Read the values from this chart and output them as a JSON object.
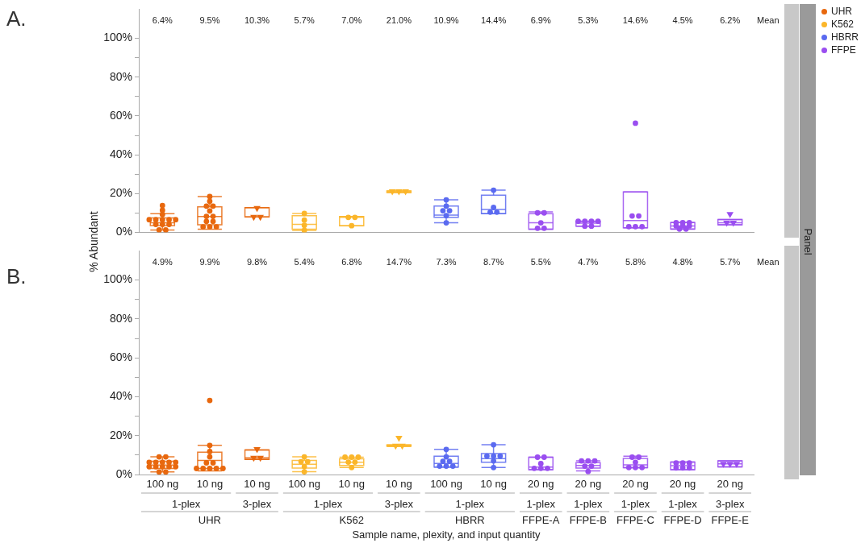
{
  "chart_data": [
    {
      "type": "box",
      "title": "A.",
      "ylabel": "% Abundant",
      "tick_labels": "y",
      "legend": "top right",
      "marker": "circle",
      "categories": [
        null,
        null,
        null,
        null,
        null,
        null,
        null,
        null,
        null,
        null,
        null,
        null,
        null
      ],
      "ylim": [
        0,
        115
      ],
      "yticks": [
        {
          "value": 0,
          "label": "0%"
        },
        {
          "value": 10,
          "label": null
        },
        {
          "value": 20,
          "label": "20%"
        },
        {
          "value": 30,
          "label": null
        },
        {
          "value": 40,
          "label": "40%"
        },
        {
          "value": 50,
          "label": null
        },
        {
          "value": 60,
          "label": "60%"
        },
        {
          "value": 70,
          "label": null
        },
        {
          "value": 80,
          "label": "80%"
        },
        {
          "value": 90,
          "label": null
        },
        {
          "value": 100,
          "label": "100%"
        }
      ],
      "annotations": [
        "Mean",
        "Panel"
      ],
      "series": [
        {
          "type": "box",
          "name": "UHR",
          "color": "#e8680e",
          "boxes": [
            {
              "low": 1.3,
              "q1": 3.6,
              "median": 5.0,
              "q3": 7.5,
              "high": 9.7
            },
            {
              "low": 1.7,
              "q1": 4.0,
              "median": 8.2,
              "q3": 13.2,
              "high": 18.5
            },
            {
              "low": 8.0,
              "q1": 8.0,
              "median": 8.0,
              "q3": 12.8,
              "high": 12.8
            },
            null,
            null,
            null,
            null,
            null,
            null,
            null,
            null,
            null,
            null
          ],
          "value_labels": [
            "6.4%",
            "9.5%",
            "10.3%",
            null,
            null,
            null,
            null,
            null,
            null,
            null,
            null,
            null,
            null
          ]
        },
        {
          "type": "box",
          "name": "K562",
          "color": "#fbb62a",
          "boxes": [
            null,
            null,
            null,
            {
              "low": 1.1,
              "q1": 1.7,
              "median": 4.2,
              "q3": 8.6,
              "high": 9.8
            },
            {
              "low": 3.5,
              "q1": 3.5,
              "median": 7.8,
              "q3": 8.2,
              "high": 8.2
            },
            {
              "low": 20.6,
              "q1": 20.6,
              "median": 21.2,
              "q3": 21.4,
              "high": 21.4
            },
            null,
            null,
            null,
            null,
            null,
            null,
            null
          ],
          "value_labels": [
            null,
            null,
            null,
            "5.7%",
            "7.0%",
            "21.0%",
            null,
            null,
            null,
            null,
            null,
            null,
            null
          ]
        },
        {
          "type": "box",
          "name": "HBRR",
          "color": "#5a6af0",
          "boxes": [
            null,
            null,
            null,
            null,
            null,
            null,
            {
              "low": 5.0,
              "q1": 7.8,
              "median": 9.0,
              "q3": 13.6,
              "high": 16.8
            },
            {
              "low": 9.7,
              "q1": 9.7,
              "median": 11.9,
              "q3": 19.2,
              "high": 21.8
            },
            null,
            null,
            null,
            null,
            null
          ],
          "value_labels": [
            null,
            null,
            null,
            null,
            null,
            null,
            "10.9%",
            "14.4%",
            null,
            null,
            null,
            null,
            null
          ]
        },
        {
          "type": "box",
          "name": "FFPE",
          "color": "#9a4ef0",
          "boxes": [
            null,
            null,
            null,
            null,
            null,
            null,
            null,
            null,
            {
              "low": 1.7,
              "q1": 1.7,
              "median": 5.0,
              "q3": 9.7,
              "high": 10.6
            },
            {
              "low": 3.3,
              "q1": 3.3,
              "median": 4.8,
              "q3": 5.6,
              "high": 5.8
            },
            {
              "low": 2.4,
              "q1": 2.4,
              "median": 6.2,
              "q3": 20.9,
              "high": 20.9
            },
            {
              "low": 1.7,
              "q1": 1.8,
              "median": 3.4,
              "q3": 5.1,
              "high": 5.1
            },
            {
              "low": 4.0,
              "q1": 4.0,
              "median": 5.0,
              "q3": 6.7,
              "high": 6.7
            }
          ],
          "value_labels": [
            null,
            null,
            null,
            null,
            null,
            null,
            null,
            null,
            "6.9%",
            "5.3%",
            "14.6%",
            "4.5%",
            "6.2%"
          ]
        },
        {
          "type": "scatter",
          "values": [
            13.9,
            18.5,
            null,
            9.8,
            7.8,
            null,
            16.8,
            21.8,
            10.1,
            5.8,
            56.3,
            5.1,
            null
          ],
          "colors": [
            "#e8680e",
            "#e8680e",
            null,
            "#fbb62a",
            "#fbb62a",
            null,
            "#5a6af0",
            "#5a6af0",
            "#9a4ef0",
            "#9a4ef0",
            "#9a4ef0",
            "#9a4ef0",
            null
          ]
        },
        {
          "type": "scatter",
          "values": [
            11.5,
            16.1,
            null,
            6.4,
            7.8,
            null,
            13.6,
            12.9,
            10.1,
            5.8,
            8.5,
            5.1,
            null
          ],
          "colors": [
            "#e8680e",
            "#e8680e",
            null,
            "#fbb62a",
            "#fbb62a",
            null,
            "#5a6af0",
            "#5a6af0",
            "#9a4ef0",
            "#9a4ef0",
            "#9a4ef0",
            "#9a4ef0",
            null
          ]
        },
        {
          "type": "scatter",
          "values": [
            9.3,
            13.6,
            null,
            3.7,
            3.5,
            null,
            11.2,
            10.5,
            5.0,
            5.8,
            8.5,
            5.1,
            null
          ],
          "colors": [
            "#e8680e",
            "#e8680e",
            null,
            "#fbb62a",
            "#fbb62a",
            null,
            "#5a6af0",
            "#5a6af0",
            "#9a4ef0",
            "#9a4ef0",
            "#9a4ef0",
            "#9a4ef0",
            null
          ]
        },
        {
          "type": "scatter",
          "values": [
            6.6,
            13.6,
            null,
            1.1,
            null,
            null,
            11.2,
            10.5,
            2.2,
            5.8,
            3.0,
            3.4,
            null
          ],
          "colors": [
            "#e8680e",
            "#e8680e",
            null,
            "#fbb62a",
            null,
            null,
            "#5a6af0",
            "#5a6af0",
            "#9a4ef0",
            "#9a4ef0",
            "#9a4ef0",
            "#9a4ef0",
            null
          ]
        },
        {
          "type": "scatter",
          "values": [
            6.6,
            11.1,
            null,
            null,
            null,
            null,
            8.7,
            null,
            2.2,
            3.3,
            3.0,
            3.4,
            null
          ],
          "colors": [
            "#e8680e",
            "#e8680e",
            null,
            null,
            null,
            null,
            "#5a6af0",
            null,
            "#9a4ef0",
            "#9a4ef0",
            "#9a4ef0",
            "#9a4ef0",
            null
          ]
        },
        {
          "type": "scatter",
          "values": [
            6.6,
            8.3,
            null,
            null,
            null,
            null,
            5.0,
            null,
            null,
            3.3,
            3.0,
            3.4,
            null
          ],
          "colors": [
            "#e8680e",
            "#e8680e",
            null,
            null,
            null,
            null,
            "#5a6af0",
            null,
            null,
            "#9a4ef0",
            "#9a4ef0",
            "#9a4ef0",
            null
          ]
        },
        {
          "type": "scatter",
          "values": [
            6.6,
            8.3,
            null,
            null,
            null,
            null,
            null,
            null,
            null,
            null,
            null,
            1.8,
            null
          ],
          "colors": [
            "#e8680e",
            "#e8680e",
            null,
            null,
            null,
            null,
            null,
            null,
            null,
            null,
            null,
            "#9a4ef0",
            null
          ]
        },
        {
          "type": "scatter",
          "values": [
            6.6,
            5.7,
            null,
            null,
            null,
            null,
            null,
            null,
            null,
            null,
            null,
            1.8,
            null
          ],
          "colors": [
            "#e8680e",
            "#e8680e",
            null,
            null,
            null,
            null,
            null,
            null,
            null,
            null,
            null,
            "#9a4ef0",
            null
          ]
        },
        {
          "type": "scatter",
          "values": [
            4.2,
            5.7,
            null,
            null,
            null,
            null,
            null,
            null,
            null,
            null,
            null,
            null,
            null
          ],
          "colors": [
            "#e8680e",
            "#e8680e",
            null,
            null,
            null,
            null,
            null,
            null,
            null,
            null,
            null,
            null,
            null
          ]
        },
        {
          "type": "scatter",
          "values": [
            4.2,
            2.9,
            null,
            null,
            null,
            null,
            null,
            null,
            null,
            null,
            null,
            null,
            null
          ],
          "colors": [
            "#e8680e",
            "#e8680e",
            null,
            null,
            null,
            null,
            null,
            null,
            null,
            null,
            null,
            null,
            null
          ]
        },
        {
          "type": "scatter",
          "values": [
            4.2,
            2.9,
            null,
            null,
            null,
            null,
            null,
            null,
            null,
            null,
            null,
            null,
            null
          ],
          "colors": [
            "#e8680e",
            "#e8680e",
            null,
            null,
            null,
            null,
            null,
            null,
            null,
            null,
            null,
            null,
            null
          ]
        },
        {
          "type": "scatter",
          "values": [
            1.3,
            2.9,
            null,
            null,
            null,
            null,
            null,
            null,
            null,
            null,
            null,
            null,
            null
          ],
          "colors": [
            "#e8680e",
            "#e8680e",
            null,
            null,
            null,
            null,
            null,
            null,
            null,
            null,
            null,
            null,
            null
          ]
        },
        {
          "type": "scatter",
          "values": [
            1.3,
            null,
            null,
            null,
            null,
            null,
            null,
            null,
            null,
            null,
            null,
            null,
            null
          ],
          "colors": [
            "#e8680e",
            null,
            null,
            null,
            null,
            null,
            null,
            null,
            null,
            null,
            null,
            null,
            null
          ]
        },
        {
          "type": "scatter",
          "marker": "triangle",
          "values": [
            null,
            null,
            12.6,
            null,
            null,
            21.2,
            null,
            null,
            null,
            null,
            null,
            null,
            9.5
          ],
          "colors": [
            null,
            null,
            "#e8680e",
            null,
            null,
            "#fbb62a",
            null,
            null,
            null,
            null,
            null,
            null,
            "#9a4ef0"
          ]
        },
        {
          "type": "scatter",
          "marker": "triangle",
          "values": [
            null,
            null,
            8.0,
            null,
            null,
            21.2,
            null,
            null,
            null,
            null,
            null,
            null,
            5.0
          ],
          "colors": [
            null,
            null,
            "#e8680e",
            null,
            null,
            "#fbb62a",
            null,
            null,
            null,
            null,
            null,
            null,
            "#9a4ef0"
          ]
        },
        {
          "type": "scatter",
          "marker": "triangle",
          "values": [
            null,
            null,
            8.0,
            null,
            null,
            21.2,
            null,
            null,
            null,
            null,
            null,
            null,
            5.0
          ],
          "colors": [
            null,
            null,
            "#e8680e",
            null,
            null,
            "#fbb62a",
            null,
            null,
            null,
            null,
            null,
            null,
            "#9a4ef0"
          ]
        }
      ]
    },
    {
      "type": "box",
      "title": "B.",
      "xlabel": "Sample name, plexity, and input quantity",
      "marker": "circle",
      "categories": [
        "100 ng",
        "10 ng",
        "10 ng",
        "100 ng",
        "10 ng",
        "10 ng",
        "100 ng",
        "10 ng",
        "20 ng",
        "20 ng",
        "20 ng",
        "20 ng",
        "20 ng"
      ],
      "ylim": [
        0,
        115
      ],
      "yticks": [
        {
          "value": 0,
          "label": "0%"
        },
        {
          "value": 10,
          "label": null
        },
        {
          "value": 20,
          "label": "20%"
        },
        {
          "value": 30,
          "label": null
        },
        {
          "value": 40,
          "label": "40%"
        },
        {
          "value": 50,
          "label": null
        },
        {
          "value": 60,
          "label": "60%"
        },
        {
          "value": 70,
          "label": null
        },
        {
          "value": 80,
          "label": "80%"
        },
        {
          "value": 90,
          "label": null
        },
        {
          "value": 100,
          "label": "100%"
        }
      ],
      "annotations": [
        "Mean",
        "1-plex",
        "3-plex",
        "1-plex",
        "3-plex",
        "1-plex",
        "1-plex",
        "1-plex",
        "1-plex",
        "1-plex",
        "3-plex",
        "UHR",
        "K562",
        "HBRR",
        "FFPE-A",
        "FFPE-B",
        "FFPE-C",
        "FFPE-D",
        "FFPE-E"
      ],
      "series": [
        {
          "type": "box",
          "color": "#e8680e",
          "boxes": [
            {
              "low": 1.3,
              "q1": 3.1,
              "median": 4.9,
              "q3": 6.8,
              "high": 9.1
            },
            {
              "low": 1.9,
              "q1": 3.1,
              "median": 7.2,
              "q3": 11.5,
              "high": 15.0
            },
            {
              "low": 7.8,
              "q1": 7.8,
              "median": 8.6,
              "q3": 12.6,
              "high": 12.6
            },
            null,
            null,
            null,
            null,
            null,
            null,
            null,
            null,
            null,
            null
          ],
          "value_labels": [
            "4.9%",
            "9.9%",
            "9.8%",
            null,
            null,
            null,
            null,
            null,
            null,
            null,
            null,
            null,
            null
          ]
        },
        {
          "type": "box",
          "color": "#fbb62a",
          "boxes": [
            null,
            null,
            null,
            {
              "low": 1.4,
              "q1": 3.3,
              "median": 5.3,
              "q3": 7.3,
              "high": 9.1
            },
            {
              "low": 3.6,
              "q1": 4.7,
              "median": 6.3,
              "q3": 8.1,
              "high": 8.9
            },
            {
              "low": 14.4,
              "q1": 14.6,
              "median": 14.8,
              "q3": 15.2,
              "high": 15.2
            },
            null,
            null,
            null,
            null,
            null,
            null,
            null
          ],
          "value_labels": [
            null,
            null,
            null,
            "5.4%",
            "6.8%",
            "14.7%",
            null,
            null,
            null,
            null,
            null,
            null,
            null
          ]
        },
        {
          "type": "box",
          "color": "#5a6af0",
          "boxes": [
            null,
            null,
            null,
            null,
            null,
            null,
            {
              "low": 3.8,
              "q1": 3.8,
              "median": 5.7,
              "q3": 9.4,
              "high": 12.9
            },
            {
              "low": 3.6,
              "q1": 6.3,
              "median": 8.2,
              "q3": 10.8,
              "high": 15.3
            },
            null,
            null,
            null,
            null,
            null
          ],
          "value_labels": [
            null,
            null,
            null,
            null,
            null,
            null,
            "7.3%",
            "8.7%",
            null,
            null,
            null,
            null,
            null
          ]
        },
        {
          "type": "box",
          "color": "#9a4ef0",
          "boxes": [
            null,
            null,
            null,
            null,
            null,
            null,
            null,
            null,
            {
              "low": 2.5,
              "q1": 2.5,
              "median": 3.8,
              "q3": 8.9,
              "high": 8.9
            },
            {
              "low": 1.9,
              "q1": 3.3,
              "median": 4.7,
              "q3": 6.1,
              "high": 7.0
            },
            {
              "low": 3.5,
              "q1": 3.5,
              "median": 5.0,
              "q3": 8.3,
              "high": 9.4
            },
            {
              "low": 2.5,
              "q1": 2.5,
              "median": 4.6,
              "q3": 6.4,
              "high": 6.4
            },
            {
              "low": 3.9,
              "q1": 3.9,
              "median": 5.5,
              "q3": 7.0,
              "high": 7.0
            }
          ],
          "value_labels": [
            null,
            null,
            null,
            null,
            null,
            null,
            null,
            null,
            "5.5%",
            "4.7%",
            "5.8%",
            "4.8%",
            "5.7%"
          ]
        },
        {
          "type": "scatter",
          "values": [
            9.1,
            38.1,
            null,
            9.1,
            8.9,
            null,
            12.9,
            15.3,
            8.9,
            7.0,
            8.9,
            5.9,
            null
          ],
          "colors": [
            "#e8680e",
            "#e8680e",
            null,
            "#fbb62a",
            "#fbb62a",
            null,
            "#5a6af0",
            "#5a6af0",
            "#9a4ef0",
            "#9a4ef0",
            "#9a4ef0",
            "#9a4ef0",
            null
          ]
        },
        {
          "type": "scatter",
          "values": [
            9.1,
            15.0,
            null,
            6.6,
            8.9,
            null,
            9.1,
            9.5,
            8.9,
            7.0,
            8.9,
            5.9,
            null
          ],
          "colors": [
            "#e8680e",
            "#e8680e",
            null,
            "#fbb62a",
            "#fbb62a",
            null,
            "#5a6af0",
            "#5a6af0",
            "#9a4ef0",
            "#9a4ef0",
            "#9a4ef0",
            "#9a4ef0",
            null
          ]
        },
        {
          "type": "scatter",
          "values": [
            6.3,
            11.8,
            null,
            6.6,
            8.9,
            null,
            6.8,
            9.5,
            5.6,
            7.0,
            6.3,
            5.9,
            null
          ],
          "colors": [
            "#e8680e",
            "#e8680e",
            null,
            "#fbb62a",
            "#fbb62a",
            null,
            "#5a6af0",
            "#5a6af0",
            "#9a4ef0",
            "#9a4ef0",
            "#9a4ef0",
            "#9a4ef0",
            null
          ]
        },
        {
          "type": "scatter",
          "values": [
            6.3,
            9.1,
            null,
            4.1,
            6.4,
            null,
            6.8,
            9.5,
            3.2,
            4.3,
            3.6,
            3.4,
            null
          ],
          "colors": [
            "#e8680e",
            "#e8680e",
            null,
            "#fbb62a",
            "#fbb62a",
            null,
            "#5a6af0",
            "#5a6af0",
            "#9a4ef0",
            "#9a4ef0",
            "#9a4ef0",
            "#9a4ef0",
            null
          ]
        },
        {
          "type": "scatter",
          "values": [
            6.3,
            6.0,
            null,
            1.4,
            6.4,
            null,
            4.3,
            7.0,
            3.2,
            4.3,
            3.6,
            3.4,
            null
          ],
          "colors": [
            "#e8680e",
            "#e8680e",
            null,
            "#fbb62a",
            "#fbb62a",
            null,
            "#5a6af0",
            "#5a6af0",
            "#9a4ef0",
            "#9a4ef0",
            "#9a4ef0",
            "#9a4ef0",
            null
          ]
        },
        {
          "type": "scatter",
          "values": [
            6.3,
            6.0,
            null,
            null,
            3.6,
            null,
            4.3,
            3.6,
            3.2,
            1.6,
            3.6,
            3.4,
            null
          ],
          "colors": [
            "#e8680e",
            "#e8680e",
            null,
            null,
            "#fbb62a",
            null,
            "#5a6af0",
            "#5a6af0",
            "#9a4ef0",
            "#9a4ef0",
            "#9a4ef0",
            "#9a4ef0",
            null
          ]
        },
        {
          "type": "scatter",
          "values": [
            6.3,
            3.1,
            null,
            null,
            null,
            null,
            4.3,
            null,
            null,
            null,
            null,
            null,
            null
          ],
          "colors": [
            "#e8680e",
            "#e8680e",
            null,
            null,
            null,
            null,
            "#5a6af0",
            null,
            null,
            null,
            null,
            null,
            null
          ]
        },
        {
          "type": "scatter",
          "values": [
            4.0,
            3.1,
            null,
            null,
            null,
            null,
            null,
            null,
            null,
            null,
            null,
            null,
            null
          ],
          "colors": [
            "#e8680e",
            "#e8680e",
            null,
            null,
            null,
            null,
            null,
            null,
            null,
            null,
            null,
            null,
            null
          ]
        },
        {
          "type": "scatter",
          "values": [
            4.0,
            3.1,
            null,
            null,
            null,
            null,
            null,
            null,
            null,
            null,
            null,
            null,
            null
          ],
          "colors": [
            "#e8680e",
            "#e8680e",
            null,
            null,
            null,
            null,
            null,
            null,
            null,
            null,
            null,
            null,
            null
          ]
        },
        {
          "type": "scatter",
          "values": [
            4.0,
            3.1,
            null,
            null,
            null,
            null,
            null,
            null,
            null,
            null,
            null,
            null,
            null
          ],
          "colors": [
            "#e8680e",
            "#e8680e",
            null,
            null,
            null,
            null,
            null,
            null,
            null,
            null,
            null,
            null,
            null
          ]
        },
        {
          "type": "scatter",
          "values": [
            4.0,
            3.1,
            null,
            null,
            null,
            null,
            null,
            null,
            null,
            null,
            null,
            null,
            null
          ],
          "colors": [
            "#e8680e",
            "#e8680e",
            null,
            null,
            null,
            null,
            null,
            null,
            null,
            null,
            null,
            null,
            null
          ]
        },
        {
          "type": "scatter",
          "values": [
            4.0,
            null,
            null,
            null,
            null,
            null,
            null,
            null,
            null,
            null,
            null,
            null,
            null
          ],
          "colors": [
            "#e8680e",
            null,
            null,
            null,
            null,
            null,
            null,
            null,
            null,
            null,
            null,
            null,
            null
          ]
        },
        {
          "type": "scatter",
          "values": [
            1.3,
            null,
            null,
            null,
            null,
            null,
            null,
            null,
            null,
            null,
            null,
            null,
            null
          ],
          "colors": [
            "#e8680e",
            null,
            null,
            null,
            null,
            null,
            null,
            null,
            null,
            null,
            null,
            null,
            null
          ]
        },
        {
          "type": "scatter",
          "values": [
            1.3,
            null,
            null,
            null,
            null,
            null,
            null,
            null,
            null,
            null,
            null,
            null,
            null
          ],
          "colors": [
            "#e8680e",
            null,
            null,
            null,
            null,
            null,
            null,
            null,
            null,
            null,
            null,
            null,
            null
          ]
        },
        {
          "type": "scatter",
          "marker": "triangle",
          "values": [
            null,
            null,
            13.1,
            null,
            null,
            18.8,
            null,
            null,
            null,
            null,
            null,
            null,
            5.5
          ],
          "colors": [
            null,
            null,
            "#e8680e",
            null,
            null,
            "#fbb62a",
            null,
            null,
            null,
            null,
            null,
            null,
            "#9a4ef0"
          ]
        },
        {
          "type": "scatter",
          "marker": "triangle",
          "values": [
            null,
            null,
            8.6,
            null,
            null,
            14.8,
            null,
            null,
            null,
            null,
            null,
            null,
            5.5
          ],
          "colors": [
            null,
            null,
            "#e8680e",
            null,
            null,
            "#fbb62a",
            null,
            null,
            null,
            null,
            null,
            null,
            "#9a4ef0"
          ]
        },
        {
          "type": "scatter",
          "marker": "triangle",
          "values": [
            null,
            null,
            8.6,
            null,
            null,
            14.8,
            null,
            null,
            null,
            null,
            null,
            null,
            5.5
          ],
          "colors": [
            null,
            null,
            "#e8680e",
            null,
            null,
            "#fbb62a",
            null,
            null,
            null,
            null,
            null,
            null,
            "#9a4ef0"
          ]
        }
      ]
    }
  ]
}
